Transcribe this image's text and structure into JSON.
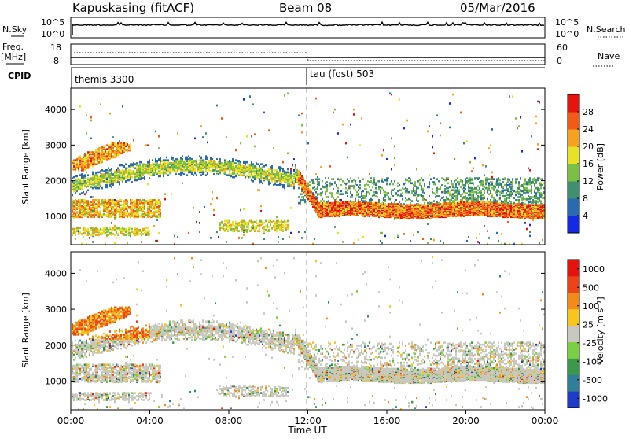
{
  "header": {
    "station": "Kapuskasing (fitACF)",
    "beam": "Beam 08",
    "date": "05/Mar/2016"
  },
  "top_panels": {
    "nsky_label": "N.Sky",
    "nsky_ticks": [
      "10^5",
      "10^0"
    ],
    "nsearch_label": "N.Search",
    "nsearch_ticks": [
      "10^5",
      "10^0"
    ],
    "freq_label": "Freq.",
    "freq_unit": "[MHz]",
    "freq_ticks": [
      "18",
      "8"
    ],
    "nave_label": "Nave",
    "nave_ticks": [
      "60",
      "0"
    ],
    "cpid_label": "CPID",
    "cpid_modes": [
      {
        "label": "themis 3300",
        "start_hour": 0
      },
      {
        "label": "tau (fost) 503",
        "start_hour": 12
      }
    ]
  },
  "chart_data": [
    {
      "type": "heatmap",
      "name": "power",
      "ylabel": "Slant Range [km]",
      "yticks": [
        1000,
        2000,
        3000,
        4000
      ],
      "ylim": [
        200,
        4600
      ],
      "colorbar_label": "Power [dB]",
      "colorbar_ticks": [
        "4",
        "8",
        "12",
        "16",
        "20",
        "24",
        "28"
      ],
      "colors": [
        "#1428e6",
        "#2a6ab0",
        "#3f8f70",
        "#7cc043",
        "#e7e225",
        "#f6a21e",
        "#f25a16",
        "#e6130f"
      ]
    },
    {
      "type": "heatmap",
      "name": "velocity",
      "ylabel": "Slant Range [km]",
      "yticks": [
        1000,
        2000,
        3000,
        4000
      ],
      "ylim": [
        200,
        4600
      ],
      "colorbar_label": "Velocity [m s⁻¹]",
      "colorbar_ticks": [
        "1000",
        "500",
        "100",
        "25",
        "-25",
        "-100",
        "-500",
        "-1000"
      ],
      "colors": [
        "#1e3cc8",
        "#2f7f9a",
        "#3a9a4a",
        "#7ad042",
        "#c8c8c0",
        "#f7c51c",
        "#f48a18",
        "#ec4416",
        "#e6120f"
      ]
    }
  ],
  "x_axis": {
    "label": "Time UT",
    "ticks": [
      "00:00",
      "04:00",
      "08:00",
      "12:00",
      "16:00",
      "20:00",
      "00:00"
    ],
    "range_hours": [
      0,
      24
    ]
  }
}
